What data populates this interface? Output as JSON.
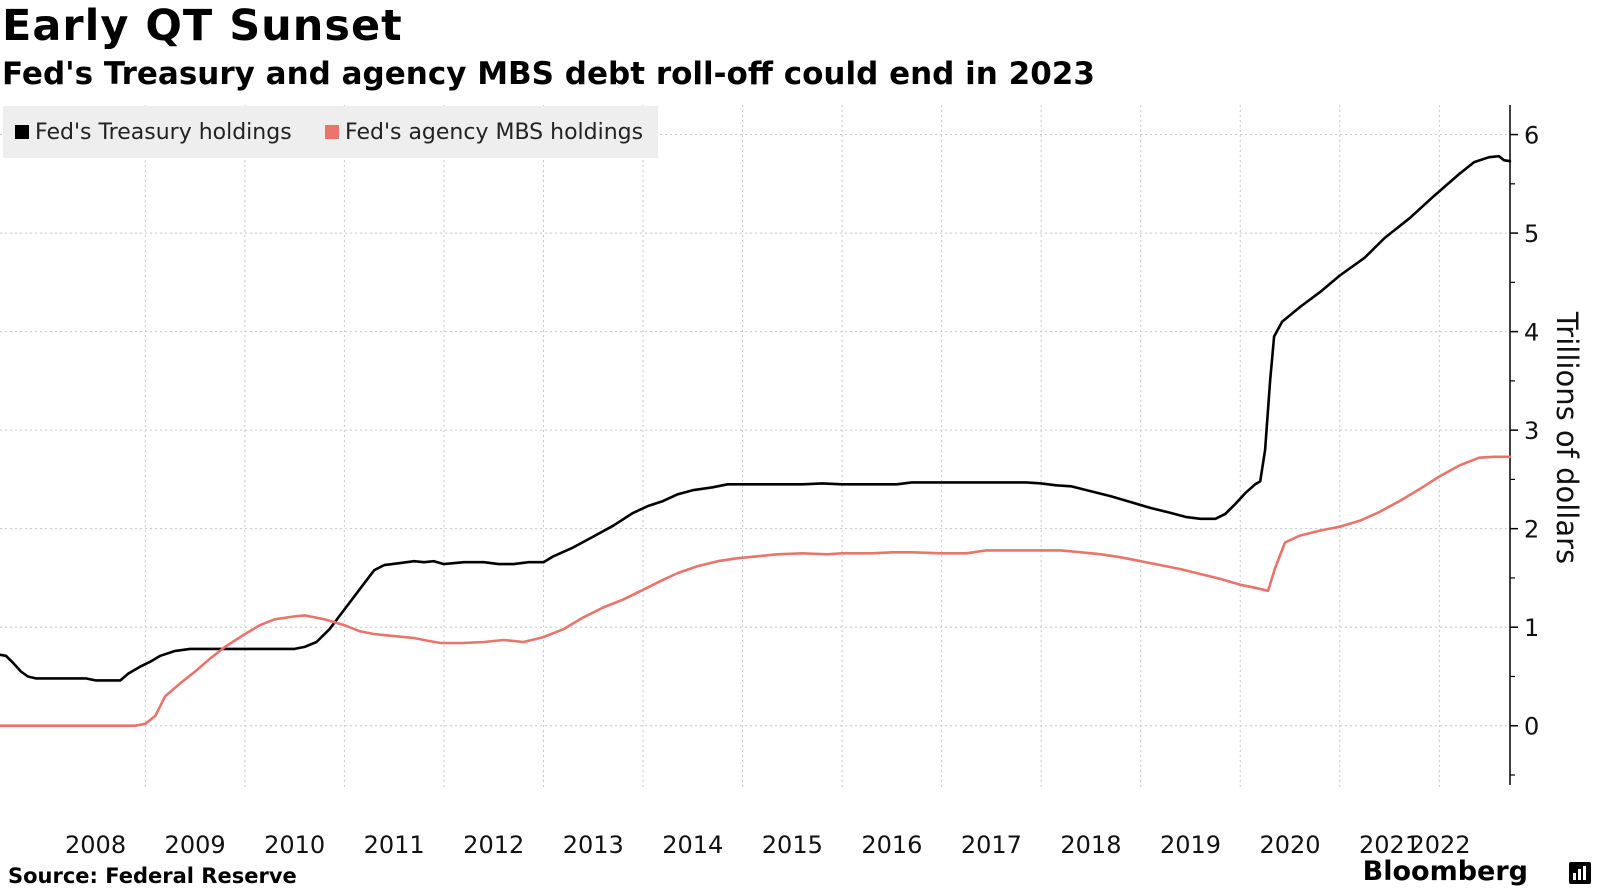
{
  "header": {
    "title": "Early QT Sunset",
    "subtitle": "Fed's Treasury and agency MBS debt roll-off could end in 2023"
  },
  "footer": {
    "source": "Source: Federal Reserve",
    "brand": "Bloomberg",
    "brand_icon": "bloomberg-bars-icon"
  },
  "legend": {
    "position": "top-left",
    "items": [
      {
        "label": "Fed's Treasury holdings",
        "color": "#000000"
      },
      {
        "label": "Fed's agency MBS holdings",
        "color": "#e8746c"
      }
    ]
  },
  "chart_data": {
    "type": "line",
    "title": "Early QT Sunset",
    "subtitle": "Fed's Treasury and agency MBS debt roll-off could end in 2023",
    "xlabel": "",
    "ylabel": "Trillions of dollars",
    "xlim": [
      2007.54,
      2022.71
    ],
    "ylim": [
      -0.5,
      6.3
    ],
    "x_ticks": [
      "2008",
      "2009",
      "2010",
      "2011",
      "2012",
      "2013",
      "2014",
      "2015",
      "2016",
      "2017",
      "2018",
      "2019",
      "2020",
      "2021",
      "2022"
    ],
    "y_ticks": [
      "0",
      "1",
      "2",
      "3",
      "4",
      "5",
      "6"
    ],
    "y_axis_side": "right",
    "grid": true,
    "legend_position": "top-left",
    "series": [
      {
        "name": "Fed's Treasury holdings",
        "color": "#000000",
        "points": [
          [
            2007.54,
            0.72
          ],
          [
            2007.6,
            0.71
          ],
          [
            2007.68,
            0.63
          ],
          [
            2007.75,
            0.55
          ],
          [
            2007.82,
            0.5
          ],
          [
            2007.9,
            0.48
          ],
          [
            2008.0,
            0.48
          ],
          [
            2008.2,
            0.48
          ],
          [
            2008.4,
            0.48
          ],
          [
            2008.5,
            0.46
          ],
          [
            2008.65,
            0.46
          ],
          [
            2008.75,
            0.46
          ],
          [
            2008.83,
            0.53
          ],
          [
            2008.95,
            0.6
          ],
          [
            2009.05,
            0.65
          ],
          [
            2009.15,
            0.71
          ],
          [
            2009.3,
            0.76
          ],
          [
            2009.45,
            0.78
          ],
          [
            2009.7,
            0.78
          ],
          [
            2010.0,
            0.78
          ],
          [
            2010.3,
            0.78
          ],
          [
            2010.5,
            0.78
          ],
          [
            2010.6,
            0.8
          ],
          [
            2010.72,
            0.85
          ],
          [
            2010.85,
            0.98
          ],
          [
            2011.0,
            1.18
          ],
          [
            2011.15,
            1.38
          ],
          [
            2011.3,
            1.58
          ],
          [
            2011.4,
            1.63
          ],
          [
            2011.55,
            1.65
          ],
          [
            2011.7,
            1.67
          ],
          [
            2011.8,
            1.66
          ],
          [
            2011.9,
            1.67
          ],
          [
            2012.0,
            1.64
          ],
          [
            2012.2,
            1.66
          ],
          [
            2012.4,
            1.66
          ],
          [
            2012.55,
            1.64
          ],
          [
            2012.7,
            1.64
          ],
          [
            2012.85,
            1.66
          ],
          [
            2013.0,
            1.66
          ],
          [
            2013.1,
            1.72
          ],
          [
            2013.3,
            1.81
          ],
          [
            2013.5,
            1.92
          ],
          [
            2013.7,
            2.03
          ],
          [
            2013.9,
            2.16
          ],
          [
            2014.05,
            2.23
          ],
          [
            2014.2,
            2.28
          ],
          [
            2014.35,
            2.35
          ],
          [
            2014.5,
            2.39
          ],
          [
            2014.7,
            2.42
          ],
          [
            2014.85,
            2.45
          ],
          [
            2015.0,
            2.45
          ],
          [
            2015.3,
            2.45
          ],
          [
            2015.6,
            2.45
          ],
          [
            2015.8,
            2.46
          ],
          [
            2016.0,
            2.45
          ],
          [
            2016.3,
            2.45
          ],
          [
            2016.55,
            2.45
          ],
          [
            2016.7,
            2.47
          ],
          [
            2017.0,
            2.47
          ],
          [
            2017.3,
            2.47
          ],
          [
            2017.6,
            2.47
          ],
          [
            2017.85,
            2.47
          ],
          [
            2018.0,
            2.46
          ],
          [
            2018.15,
            2.44
          ],
          [
            2018.3,
            2.43
          ],
          [
            2018.5,
            2.38
          ],
          [
            2018.7,
            2.33
          ],
          [
            2018.9,
            2.27
          ],
          [
            2019.1,
            2.21
          ],
          [
            2019.3,
            2.16
          ],
          [
            2019.45,
            2.12
          ],
          [
            2019.6,
            2.1
          ],
          [
            2019.75,
            2.1
          ],
          [
            2019.85,
            2.15
          ],
          [
            2019.95,
            2.25
          ],
          [
            2020.05,
            2.36
          ],
          [
            2020.15,
            2.45
          ],
          [
            2020.2,
            2.48
          ],
          [
            2020.25,
            2.8
          ],
          [
            2020.3,
            3.5
          ],
          [
            2020.34,
            3.95
          ],
          [
            2020.42,
            4.1
          ],
          [
            2020.6,
            4.25
          ],
          [
            2020.8,
            4.4
          ],
          [
            2021.0,
            4.57
          ],
          [
            2021.25,
            4.75
          ],
          [
            2021.45,
            4.95
          ],
          [
            2021.7,
            5.15
          ],
          [
            2021.95,
            5.38
          ],
          [
            2022.2,
            5.6
          ],
          [
            2022.35,
            5.72
          ],
          [
            2022.5,
            5.77
          ],
          [
            2022.6,
            5.78
          ],
          [
            2022.65,
            5.74
          ],
          [
            2022.71,
            5.73
          ]
        ]
      },
      {
        "name": "Fed's agency MBS holdings",
        "color": "#e8746c",
        "points": [
          [
            2007.54,
            0.0
          ],
          [
            2008.0,
            0.0
          ],
          [
            2008.5,
            0.0
          ],
          [
            2008.9,
            0.0
          ],
          [
            2009.0,
            0.02
          ],
          [
            2009.1,
            0.1
          ],
          [
            2009.2,
            0.3
          ],
          [
            2009.35,
            0.43
          ],
          [
            2009.5,
            0.55
          ],
          [
            2009.65,
            0.68
          ],
          [
            2009.8,
            0.8
          ],
          [
            2010.0,
            0.93
          ],
          [
            2010.15,
            1.02
          ],
          [
            2010.3,
            1.08
          ],
          [
            2010.5,
            1.11
          ],
          [
            2010.6,
            1.12
          ],
          [
            2010.8,
            1.08
          ],
          [
            2011.0,
            1.02
          ],
          [
            2011.15,
            0.96
          ],
          [
            2011.3,
            0.93
          ],
          [
            2011.5,
            0.91
          ],
          [
            2011.7,
            0.89
          ],
          [
            2011.85,
            0.86
          ],
          [
            2011.97,
            0.84
          ],
          [
            2012.2,
            0.84
          ],
          [
            2012.4,
            0.85
          ],
          [
            2012.6,
            0.87
          ],
          [
            2012.8,
            0.85
          ],
          [
            2013.0,
            0.9
          ],
          [
            2013.2,
            0.98
          ],
          [
            2013.4,
            1.1
          ],
          [
            2013.6,
            1.2
          ],
          [
            2013.8,
            1.28
          ],
          [
            2014.0,
            1.38
          ],
          [
            2014.2,
            1.48
          ],
          [
            2014.35,
            1.55
          ],
          [
            2014.55,
            1.62
          ],
          [
            2014.75,
            1.67
          ],
          [
            2014.95,
            1.7
          ],
          [
            2015.15,
            1.72
          ],
          [
            2015.35,
            1.74
          ],
          [
            2015.6,
            1.75
          ],
          [
            2015.85,
            1.74
          ],
          [
            2016.0,
            1.75
          ],
          [
            2016.3,
            1.75
          ],
          [
            2016.5,
            1.76
          ],
          [
            2016.7,
            1.76
          ],
          [
            2017.0,
            1.75
          ],
          [
            2017.25,
            1.75
          ],
          [
            2017.45,
            1.78
          ],
          [
            2017.7,
            1.78
          ],
          [
            2018.0,
            1.78
          ],
          [
            2018.2,
            1.78
          ],
          [
            2018.4,
            1.76
          ],
          [
            2018.6,
            1.74
          ],
          [
            2018.8,
            1.71
          ],
          [
            2019.0,
            1.67
          ],
          [
            2019.2,
            1.63
          ],
          [
            2019.4,
            1.59
          ],
          [
            2019.6,
            1.54
          ],
          [
            2019.8,
            1.49
          ],
          [
            2020.0,
            1.43
          ],
          [
            2020.15,
            1.4
          ],
          [
            2020.28,
            1.37
          ],
          [
            2020.35,
            1.6
          ],
          [
            2020.45,
            1.86
          ],
          [
            2020.6,
            1.93
          ],
          [
            2020.8,
            1.98
          ],
          [
            2021.0,
            2.02
          ],
          [
            2021.2,
            2.08
          ],
          [
            2021.4,
            2.17
          ],
          [
            2021.6,
            2.28
          ],
          [
            2021.8,
            2.4
          ],
          [
            2022.0,
            2.53
          ],
          [
            2022.2,
            2.64
          ],
          [
            2022.4,
            2.72
          ],
          [
            2022.55,
            2.73
          ],
          [
            2022.71,
            2.73
          ]
        ]
      }
    ]
  }
}
